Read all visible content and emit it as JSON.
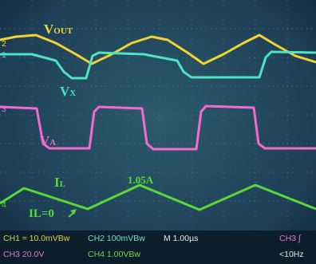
{
  "screen": {
    "traces": [
      {
        "main": "V",
        "sub": "OUT",
        "color": "#f2d330"
      },
      {
        "main": "V",
        "sub": "X",
        "color": "#4ee3c2"
      },
      {
        "main": "V",
        "sub": "A",
        "color": "#f36ad0"
      },
      {
        "main": "I",
        "sub": "L",
        "color": "#5ad838"
      }
    ],
    "annotations": {
      "zero": "IL=0",
      "peak": "1.05A"
    },
    "markers": [
      "1",
      "2",
      "3",
      "4"
    ],
    "status": {
      "row1": [
        "CH1 ≈ 10.0mVBw",
        "CH2 100mVBw",
        "M 1.00µs",
        "CH3 ∫"
      ],
      "row2": [
        "CH3 20.0V",
        "CH4 1.00VBw",
        "<10Hz"
      ]
    }
  }
}
